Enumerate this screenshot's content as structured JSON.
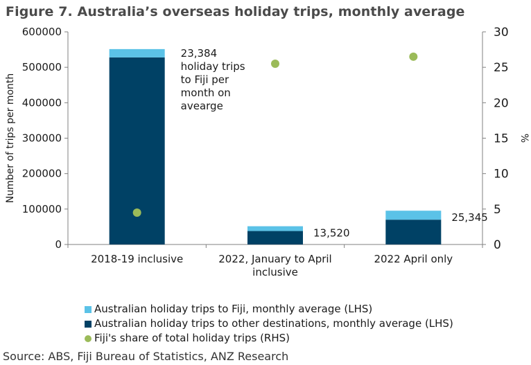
{
  "title": "Figure 7. Australia’s overseas holiday trips, monthly average",
  "source": "Source: ABS, Fiji Bureau of Statistics, ANZ Research",
  "colors": {
    "fiji": "#5bc2e7",
    "other": "#004165",
    "share": "#9bbb59",
    "axis": "#808080"
  },
  "chart_data": {
    "type": "bar",
    "stacked": true,
    "categories": [
      [
        "2018-19 inclusive"
      ],
      [
        "2022, January to April",
        "inclusive"
      ],
      [
        "2022 April only"
      ]
    ],
    "series": [
      {
        "name": "Australian holiday trips to Fiji, monthly average (LHS)",
        "axis": "left",
        "values": [
          23384,
          13520,
          25345
        ]
      },
      {
        "name": "Australian holiday trips to other destinations, monthly average (LHS)",
        "axis": "left",
        "values": [
          528000,
          38000,
          70000
        ]
      },
      {
        "name": "Fiji's share of total holiday trips (RHS)",
        "axis": "right",
        "kind": "scatter",
        "values": [
          4.5,
          25.5,
          26.5
        ]
      }
    ],
    "ylabel": "Number of trips per month",
    "y2label": "%",
    "ylim": [
      0,
      600000
    ],
    "y2lim": [
      0,
      30
    ],
    "yticks": [
      "0",
      "100000",
      "200000",
      "300000",
      "400000",
      "500000",
      "600000"
    ],
    "y2ticks": [
      "0",
      "5",
      "10",
      "15",
      "20",
      "25",
      "30"
    ],
    "annotations": [
      {
        "category": 0,
        "lines": [
          "23,384",
          "holiday trips",
          "to Fiji per",
          "month on",
          "avearge"
        ]
      },
      {
        "category": 1,
        "lines": [
          "13,520"
        ]
      },
      {
        "category": 2,
        "lines": [
          "25,345"
        ]
      }
    ],
    "legend_position": "bottom",
    "grid": false
  }
}
